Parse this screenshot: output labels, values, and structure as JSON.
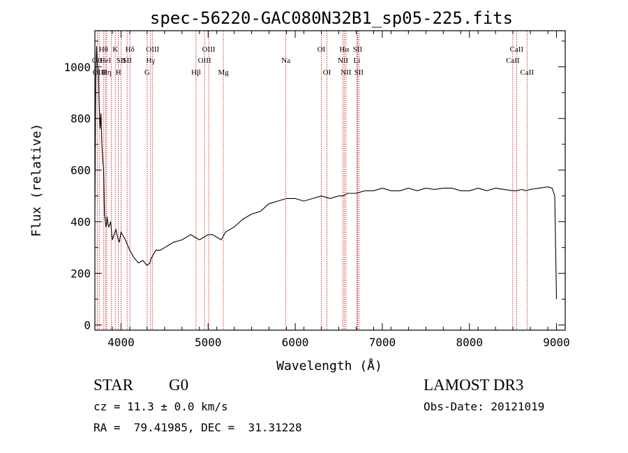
{
  "chart_data": {
    "type": "line",
    "title": "spec-56220-GAC080N32B1_sp05-225.fits",
    "xlabel": "Wavelength (Å)",
    "ylabel": "Flux (relative)",
    "xlim": [
      3700,
      9100
    ],
    "ylim": [
      -20,
      1140
    ],
    "xticks": [
      4000,
      5000,
      6000,
      7000,
      8000,
      9000
    ],
    "yticks": [
      0,
      200,
      400,
      600,
      800,
      1000
    ],
    "grid": false,
    "line_color": "#000000",
    "marker_color": "#cc0000",
    "series": [
      {
        "x": [
          3700,
          3710,
          3720,
          3730,
          3740,
          3750,
          3760,
          3770,
          3780,
          3790,
          3800,
          3810,
          3820,
          3830,
          3840,
          3850,
          3860,
          3880,
          3900,
          3920,
          3940,
          3960,
          3980,
          4000,
          4050,
          4100,
          4150,
          4200,
          4250,
          4300,
          4330,
          4350,
          4400,
          4450,
          4500,
          4550,
          4600,
          4700,
          4800,
          4850,
          4900,
          4950,
          5000,
          5050,
          5100,
          5150,
          5200,
          5300,
          5400,
          5500,
          5600,
          5700,
          5800,
          5900,
          6000,
          6100,
          6200,
          6300,
          6400,
          6500,
          6550,
          6600,
          6700,
          6800,
          6900,
          7000,
          7100,
          7200,
          7300,
          7400,
          7500,
          7600,
          7700,
          7800,
          7900,
          8000,
          8100,
          8200,
          8300,
          8400,
          8500,
          8540,
          8600,
          8650,
          8700,
          8800,
          8900,
          8950,
          8980,
          9000
        ],
        "y": [
          450,
          950,
          1080,
          1010,
          980,
          850,
          760,
          820,
          700,
          640,
          600,
          430,
          400,
          380,
          420,
          390,
          380,
          400,
          330,
          350,
          370,
          340,
          320,
          360,
          330,
          290,
          260,
          240,
          250,
          230,
          240,
          260,
          290,
          290,
          300,
          310,
          320,
          330,
          350,
          340,
          330,
          340,
          350,
          350,
          340,
          330,
          360,
          380,
          410,
          430,
          440,
          470,
          480,
          490,
          490,
          480,
          490,
          500,
          490,
          500,
          500,
          510,
          510,
          520,
          520,
          530,
          520,
          520,
          530,
          520,
          530,
          525,
          530,
          530,
          520,
          520,
          530,
          520,
          530,
          525,
          520,
          520,
          525,
          520,
          525,
          530,
          535,
          530,
          500,
          100
        ]
      }
    ],
    "spectral_lines": [
      {
        "wavelength": 3727,
        "label": "OII",
        "row": 2
      },
      {
        "wavelength": 3750,
        "label": "OIII",
        "row": 3
      },
      {
        "wavelength": 3798,
        "label": "Hθ",
        "row": 1
      },
      {
        "wavelength": 3820,
        "label": "HeI",
        "row": 2
      },
      {
        "wavelength": 3835,
        "label": "Hη",
        "row": 3
      },
      {
        "wavelength": 3889,
        "label": "",
        "row": 0
      },
      {
        "wavelength": 3934,
        "label": "K",
        "row": 1
      },
      {
        "wavelength": 3969,
        "label": "H",
        "row": 3
      },
      {
        "wavelength": 4000,
        "label": "SII",
        "row": 2
      },
      {
        "wavelength": 4102,
        "label": "Hδ",
        "row": 1
      },
      {
        "wavelength": 4070,
        "label": "SII",
        "row": 2
      },
      {
        "wavelength": 4300,
        "label": "G",
        "row": 3
      },
      {
        "wavelength": 4340,
        "label": "Hγ",
        "row": 2
      },
      {
        "wavelength": 4363,
        "label": "OIII",
        "row": 1
      },
      {
        "wavelength": 4861,
        "label": "Hβ",
        "row": 3
      },
      {
        "wavelength": 4959,
        "label": "OIII",
        "row": 2
      },
      {
        "wavelength": 5007,
        "label": "OIII",
        "row": 1
      },
      {
        "wavelength": 5175,
        "label": "Mg",
        "row": 3
      },
      {
        "wavelength": 5893,
        "label": "Na",
        "row": 2
      },
      {
        "wavelength": 6300,
        "label": "OI",
        "row": 1
      },
      {
        "wavelength": 6364,
        "label": "OI",
        "row": 3
      },
      {
        "wavelength": 6548,
        "label": "NII",
        "row": 2
      },
      {
        "wavelength": 6563,
        "label": "Hα",
        "row": 1
      },
      {
        "wavelength": 6583,
        "label": "NII",
        "row": 3
      },
      {
        "wavelength": 6708,
        "label": "Li",
        "row": 2
      },
      {
        "wavelength": 6716,
        "label": "SII",
        "row": 1
      },
      {
        "wavelength": 6731,
        "label": "SII",
        "row": 3
      },
      {
        "wavelength": 8498,
        "label": "CaII",
        "row": 2
      },
      {
        "wavelength": 8542,
        "label": "CaII",
        "row": 1
      },
      {
        "wavelength": 8662,
        "label": "CaII",
        "row": 3
      }
    ]
  },
  "info": {
    "object_class": "STAR",
    "subclass": "G0",
    "survey": "LAMOST DR3",
    "redshift": "cz = 11.3 ± 0.0 km/s",
    "obs_date": "Obs-Date: 20121019",
    "coords": "RA =  79.41985, DEC =  31.31228"
  }
}
